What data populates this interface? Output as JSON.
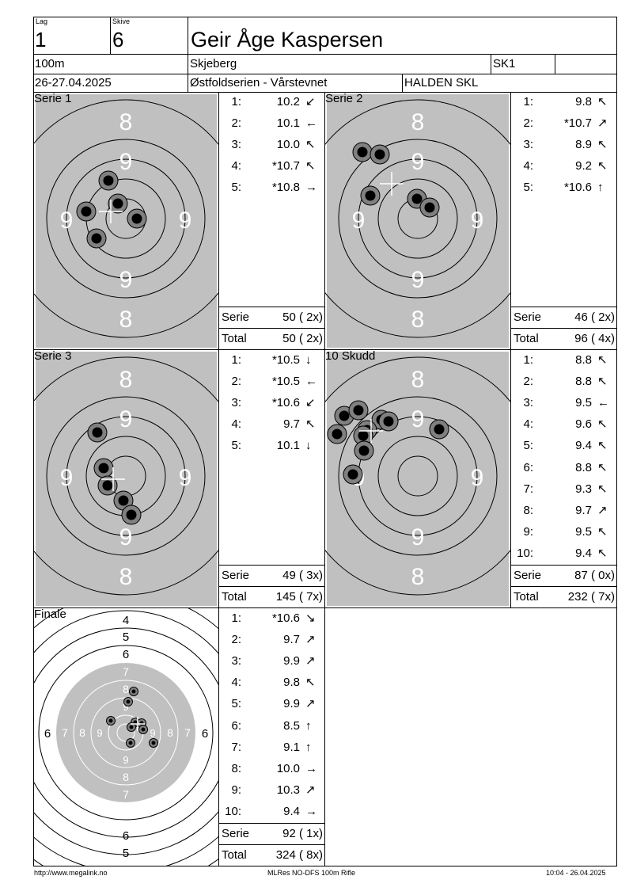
{
  "header": {
    "lag_label": "Lag",
    "lag_value": "1",
    "skive_label": "Skive",
    "skive_value": "6",
    "shooter_name": "Geir Åge Kaspersen",
    "distance": "100m",
    "location": "Skjeberg",
    "class": "SK1",
    "date": "26-27.04.2025",
    "event": "Østfoldserien - Vårstevnet",
    "club": "HALDEN SKL"
  },
  "series": [
    {
      "title": "Serie 1",
      "shots": [
        {
          "n": "1:",
          "v": "10.2",
          "arrow": "↙"
        },
        {
          "n": "2:",
          "v": "10.1",
          "arrow": "←"
        },
        {
          "n": "3:",
          "v": "10.0",
          "arrow": "↖"
        },
        {
          "n": "4:",
          "v": "*10.7",
          "arrow": "↖"
        },
        {
          "n": "5:",
          "v": "*10.8",
          "arrow": "→"
        }
      ],
      "serie_label": "Serie",
      "serie_value": "50 ( 2x)",
      "total_label": "Total",
      "total_value": "50 ( 2x)"
    },
    {
      "title": "Serie 2",
      "shots": [
        {
          "n": "1:",
          "v": "9.8",
          "arrow": "↖"
        },
        {
          "n": "2:",
          "v": "*10.7",
          "arrow": "↗"
        },
        {
          "n": "3:",
          "v": "8.9",
          "arrow": "↖"
        },
        {
          "n": "4:",
          "v": "9.2",
          "arrow": "↖"
        },
        {
          "n": "5:",
          "v": "*10.6",
          "arrow": "↑"
        }
      ],
      "serie_label": "Serie",
      "serie_value": "46 ( 2x)",
      "total_label": "Total",
      "total_value": "96 ( 4x)"
    },
    {
      "title": "Serie 3",
      "shots": [
        {
          "n": "1:",
          "v": "*10.5",
          "arrow": "↓"
        },
        {
          "n": "2:",
          "v": "*10.5",
          "arrow": "←"
        },
        {
          "n": "3:",
          "v": "*10.6",
          "arrow": "↙"
        },
        {
          "n": "4:",
          "v": "9.7",
          "arrow": "↖"
        },
        {
          "n": "5:",
          "v": "10.1",
          "arrow": "↓"
        }
      ],
      "serie_label": "Serie",
      "serie_value": "49 ( 3x)",
      "total_label": "Total",
      "total_value": "145 ( 7x)"
    },
    {
      "title": "10 Skudd",
      "shots": [
        {
          "n": "1:",
          "v": "8.8",
          "arrow": "↖"
        },
        {
          "n": "2:",
          "v": "8.8",
          "arrow": "↖"
        },
        {
          "n": "3:",
          "v": "9.5",
          "arrow": "←"
        },
        {
          "n": "4:",
          "v": "9.6",
          "arrow": "↖"
        },
        {
          "n": "5:",
          "v": "9.4",
          "arrow": "↖"
        },
        {
          "n": "6:",
          "v": "8.8",
          "arrow": "↖"
        },
        {
          "n": "7:",
          "v": "9.3",
          "arrow": "↖"
        },
        {
          "n": "8:",
          "v": "9.7",
          "arrow": "↗"
        },
        {
          "n": "9:",
          "v": "9.5",
          "arrow": "↖"
        },
        {
          "n": "10:",
          "v": "9.4",
          "arrow": "↖"
        }
      ],
      "serie_label": "Serie",
      "serie_value": "87 ( 0x)",
      "total_label": "Total",
      "total_value": "232 ( 7x)"
    },
    {
      "title": "Finale",
      "shots": [
        {
          "n": "1:",
          "v": "*10.6",
          "arrow": "↘"
        },
        {
          "n": "2:",
          "v": "9.7",
          "arrow": "↗"
        },
        {
          "n": "3:",
          "v": "9.9",
          "arrow": "↗"
        },
        {
          "n": "4:",
          "v": "9.8",
          "arrow": "↖"
        },
        {
          "n": "5:",
          "v": "9.9",
          "arrow": "↗"
        },
        {
          "n": "6:",
          "v": "8.5",
          "arrow": "↑"
        },
        {
          "n": "7:",
          "v": "9.1",
          "arrow": "↑"
        },
        {
          "n": "8:",
          "v": "10.0",
          "arrow": "→"
        },
        {
          "n": "9:",
          "v": "10.3",
          "arrow": "↗"
        },
        {
          "n": "10:",
          "v": "9.4",
          "arrow": "→"
        }
      ],
      "serie_label": "Serie",
      "serie_value": "92 ( 1x)",
      "total_label": "Total",
      "total_value": "324 ( 8x)"
    }
  ],
  "ring_labels": {
    "eight": "8",
    "nine": "9",
    "four": "4",
    "five": "5",
    "six": "6",
    "seven": "7"
  },
  "footer": {
    "left": "http://www.megalink.no",
    "center": "MLRes NO-DFS 100m Rifle",
    "right": "10:04 - 26.04.2025"
  },
  "colors": {
    "target_gray": "#c0c0c0",
    "hole_fill": "#000000",
    "hole_ring": "#808080"
  }
}
